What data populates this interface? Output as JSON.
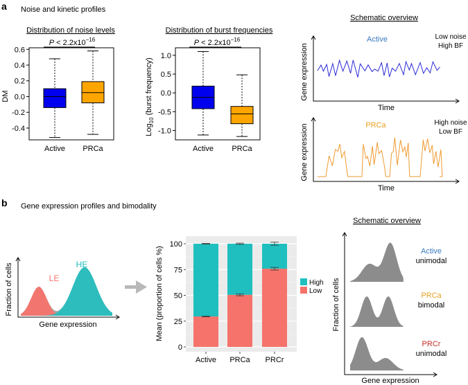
{
  "panel_a": {
    "letter": "a",
    "heading": "Noise and kinetic profiles",
    "pvalue_prefix": "P",
    "pvalue_rest": " < 2.2x10",
    "pvalue_exp": "−16",
    "schematic_title": "Schematic overview",
    "schematic_xlabel": "Time",
    "schematic_ylabel": "Gene expression",
    "schematic_active_label": "Active",
    "schematic_active_note1": "Low noise",
    "schematic_active_note2": "High BF",
    "schematic_prca_label": "PRCa",
    "schematic_prca_note1": "High noise",
    "schematic_prca_note2": "Low BF"
  },
  "panel_b": {
    "letter": "b",
    "heading": "Gene expression profiles and bimodality",
    "density_ylabel": "Fraction of cells",
    "density_xlabel": "Gene expression",
    "le_label": "LE",
    "he_label": "HE",
    "schematic_title": "Schematic overview",
    "schematic_ylabel": "Fraction of cells",
    "schematic_xlabel": "Gene expression",
    "rows": [
      {
        "name": "Active",
        "mode": "unimodal"
      },
      {
        "name": "PRCa",
        "mode": "bimodal"
      },
      {
        "name": "PRCr",
        "mode": "unimodal"
      }
    ]
  },
  "colors": {
    "active_box": "#0000ee",
    "prca_box": "#ffa500",
    "active_text": "#3a78c0",
    "prca_text": "#e8a020",
    "prcr_text": "#c0302a",
    "high": "#1fbfbf",
    "low": "#f5736b",
    "schematic_active_line": "#2b2bd6",
    "schematic_prca_line": "#ee9a30",
    "density_gray": "#8c8c8c"
  },
  "chart_data": [
    {
      "type": "box",
      "title": "Distribution of noise levels",
      "ylabel": "DM",
      "categories": [
        "Active",
        "PRCa"
      ],
      "ylim": [
        -0.55,
        0.62
      ],
      "yticks": [
        -0.4,
        -0.2,
        0.0,
        0.2,
        0.4,
        0.6
      ],
      "ytick_labels": [
        "-0.4",
        "-0.2",
        "0.0",
        "0.2",
        "0.4",
        "0.6"
      ],
      "boxes": [
        {
          "min": -0.52,
          "q1": -0.14,
          "median": 0.0,
          "q3": 0.1,
          "max": 0.48
        },
        {
          "min": -0.48,
          "q1": -0.08,
          "median": 0.05,
          "q3": 0.19,
          "max": 0.58
        }
      ]
    },
    {
      "type": "box",
      "title": "Distribution of burst frequencies",
      "ylabel": "Log",
      "ylabel_sub": "10",
      "ylabel_rest": " (burst frequency)",
      "categories": [
        "Active",
        "PRCa"
      ],
      "ylim": [
        -1.25,
        1.2
      ],
      "yticks": [
        -1.0,
        -0.5,
        0.0,
        0.5,
        1.0
      ],
      "ytick_labels": [
        "-1.0",
        "-0.5",
        "0.0",
        "0.5",
        "1.0"
      ],
      "boxes": [
        {
          "min": -1.12,
          "q1": -0.42,
          "median": -0.12,
          "q3": 0.18,
          "max": 1.1
        },
        {
          "min": -1.16,
          "q1": -0.82,
          "median": -0.56,
          "q3": -0.36,
          "max": 0.48
        }
      ]
    },
    {
      "type": "bar",
      "stacked": true,
      "ylabel": "Mean (proportion of cells %)",
      "categories": [
        "Active",
        "PRCa",
        "PRCr"
      ],
      "ylim": [
        0,
        100
      ],
      "yticks": [
        0,
        25,
        50,
        75,
        100
      ],
      "ytick_labels": [
        "0",
        "25",
        "50",
        "75",
        "100"
      ],
      "legend_position": "right",
      "series": [
        {
          "name": "Low",
          "values": [
            29.5,
            50.5,
            75.8
          ],
          "errors": [
            0.4,
            0.9,
            1.3
          ]
        },
        {
          "name": "High",
          "values": [
            70.5,
            49.5,
            24.2
          ],
          "errors": [
            0.3,
            0.6,
            1.5
          ]
        }
      ],
      "legend": [
        "High",
        "Low"
      ]
    }
  ]
}
